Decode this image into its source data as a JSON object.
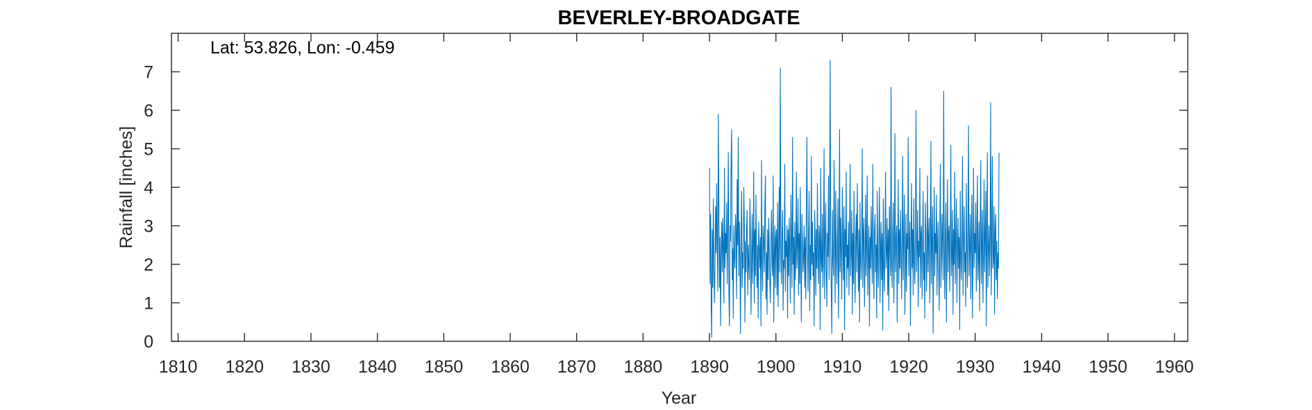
{
  "chart_data": {
    "type": "line",
    "title": "BEVERLEY-BROADGATE",
    "annotation": "Lat: 53.826, Lon: -0.459",
    "xlabel": "Year",
    "ylabel": "Rainfall [inches]",
    "xlim": [
      1809,
      1962
    ],
    "ylim": [
      0,
      8
    ],
    "xticks": [
      1810,
      1820,
      1830,
      1840,
      1850,
      1860,
      1870,
      1880,
      1890,
      1900,
      1910,
      1920,
      1930,
      1940,
      1950,
      1960
    ],
    "yticks": [
      0,
      1,
      2,
      3,
      4,
      5,
      6,
      7
    ],
    "grid": false,
    "series_color": "#0072BD",
    "series": [
      {
        "x_start": 1890.0,
        "x_step": 0.0833333,
        "values": [
          4.5,
          1.5,
          3.3,
          0.9,
          0.1,
          2.9,
          1.4,
          3.7,
          2.0,
          1.0,
          1.9,
          3.5,
          2.3,
          4.1,
          2.6,
          1.3,
          5.9,
          3.6,
          1.4,
          2.7,
          0.4,
          2.2,
          3.1,
          1.8,
          3.2,
          2.4,
          1.0,
          4.5,
          1.9,
          2.8,
          2.3,
          3.6,
          1.5,
          2.9,
          4.9,
          1.2,
          0.4,
          3.0,
          2.6,
          4.7,
          5.5,
          1.6,
          2.4,
          0.6,
          3.0,
          2.2,
          1.9,
          3.3,
          2.9,
          1.1,
          4.2,
          2.5,
          5.3,
          1.7,
          3.1,
          2.1,
          0.2,
          2.8,
          3.9,
          1.4,
          2.3,
          1.9,
          4.0,
          3.0,
          0.5,
          2.6,
          1.8,
          2.9,
          3.4,
          1.2,
          2.5,
          2.0,
          1.6,
          3.7,
          2.8,
          0.7,
          2.1,
          3.3,
          1.5,
          2.6,
          4.4,
          1.0,
          2.9,
          1.7,
          3.8,
          2.2,
          1.4,
          2.5,
          0.6,
          3.1,
          2.4,
          1.9,
          2.7,
          0.4,
          4.7,
          2.1,
          1.3,
          3.0,
          2.6,
          1.8,
          3.5,
          4.3,
          1.1,
          2.3,
          0.7,
          2.9,
          1.6,
          3.2,
          2.4,
          1.5,
          1.0,
          2.6,
          3.4,
          2.0,
          1.7,
          4.3,
          0.5,
          2.2,
          3.0,
          1.4,
          2.7,
          2.9,
          1.2,
          3.6,
          0.9,
          2.5,
          4.0,
          1.8,
          7.1,
          2.3,
          1.5,
          2.8,
          3.4,
          0.8,
          2.1,
          1.9,
          4.6,
          1.3,
          2.6,
          2.2,
          3.0,
          0.6,
          2.9,
          1.7,
          3.2,
          2.4,
          1.0,
          3.8,
          2.6,
          1.4,
          5.3,
          2.0,
          2.7,
          0.7,
          3.1,
          1.6,
          2.3,
          4.4,
          1.9,
          2.5,
          3.7,
          1.2,
          2.8,
          1.5,
          4.0,
          2.1,
          0.5,
          3.3,
          2.6,
          1.8,
          2.2,
          3.0,
          1.4,
          2.7,
          1.1,
          3.6,
          5.3,
          2.4,
          1.3,
          2.8,
          3.9,
          0.8,
          2.5,
          1.6,
          4.8,
          2.0,
          3.1,
          1.7,
          2.3,
          0.4,
          3.4,
          2.6,
          1.2,
          2.9,
          1.9,
          4.1,
          2.2,
          1.5,
          3.0,
          2.7,
          0.3,
          4.5,
          2.1,
          1.8,
          3.3,
          1.4,
          2.4,
          5.0,
          1.1,
          2.6,
          3.6,
          1.9,
          0.9,
          2.8,
          2.2,
          4.3,
          1.6,
          3.0,
          7.3,
          2.5,
          1.3,
          0.2,
          3.4,
          2.1,
          1.7,
          4.7,
          2.8,
          1.0,
          3.9,
          2.3,
          1.5,
          2.6,
          3.7,
          0.6,
          2.0,
          5.5,
          1.8,
          3.2,
          2.4,
          1.1,
          4.0,
          2.7,
          1.6,
          3.5,
          0.3,
          2.9,
          2.2,
          4.4,
          1.4,
          2.5,
          1.9,
          3.1,
          1.2,
          2.6,
          4.6,
          1.7,
          2.3,
          3.4,
          0.7,
          2.8,
          1.5,
          3.9,
          2.1,
          1.0,
          2.7,
          3.3,
          1.8,
          4.1,
          2.4,
          1.3,
          2.9,
          0.5,
          3.6,
          2.2,
          1.6,
          2.5,
          5.0,
          1.4,
          2.8,
          3.2,
          0.9,
          2.0,
          3.8,
          1.7,
          2.6,
          4.3,
          1.2,
          2.3,
          3.0,
          0.4,
          2.7,
          1.9,
          3.5,
          2.4,
          1.5,
          4.6,
          2.1,
          1.1,
          2.9,
          3.3,
          1.8,
          2.5,
          0.6,
          3.9,
          2.2,
          1.4,
          2.7,
          4.0,
          1.0,
          2.4,
          3.1,
          1.6,
          2.8,
          0.3,
          3.7,
          2.0,
          1.3,
          2.6,
          4.4,
          1.9,
          2.3,
          3.2,
          1.2,
          2.9,
          0.8,
          3.5,
          2.5,
          1.7,
          6.6,
          2.1,
          1.4,
          2.8,
          3.6,
          1.0,
          2.4,
          5.4,
          1.8,
          2.6,
          3.0,
          0.5,
          2.3,
          4.2,
          1.5,
          2.9,
          1.9,
          3.4,
          2.2,
          1.1,
          2.7,
          4.8,
          1.6,
          2.5,
          3.8,
          0.7,
          2.0,
          3.3,
          1.3,
          2.8,
          2.4,
          5.3,
          1.7,
          2.6,
          3.1,
          0.4,
          2.3,
          4.1,
          1.9,
          2.9,
          1.2,
          3.7,
          2.1,
          1.5,
          2.7,
          6.0,
          1.8,
          2.4,
          3.4,
          0.9,
          2.6,
          2.2,
          4.5,
          1.4,
          2.8,
          3.0,
          1.1,
          2.5,
          3.9,
          1.6,
          2.3,
          0.6,
          3.6,
          2.9,
          1.3,
          2.1,
          4.3,
          1.8,
          2.7,
          3.2,
          1.0,
          2.4,
          5.2,
          1.5,
          2.6,
          3.5,
          0.2,
          2.2,
          4.0,
          1.7,
          2.8,
          2.3,
          3.8,
          1.2,
          2.5,
          3.1,
          1.9,
          0.8,
          2.9,
          4.6,
          1.4,
          2.1,
          3.3,
          2.6,
          1.6,
          6.5,
          2.4,
          1.1,
          2.7,
          3.6,
          0.5,
          2.3,
          4.2,
          1.8,
          2.8,
          3.0,
          1.3,
          2.5,
          5.1,
          1.7,
          2.2,
          3.4,
          0.7,
          2.9,
          2.0,
          4.4,
          1.5,
          2.6,
          3.7,
          1.0,
          2.4,
          3.2,
          1.9,
          2.7,
          0.3,
          3.9,
          2.2,
          1.6,
          2.8,
          4.8,
          1.2,
          2.5,
          3.5,
          1.8,
          2.3,
          0.9,
          4.1,
          2.6,
          1.4,
          2.9,
          5.6,
          1.7,
          2.4,
          3.3,
          1.1,
          2.7,
          3.8,
          0.6,
          2.1,
          4.5,
          1.9,
          2.8,
          2.3,
          3.6,
          1.3,
          2.6,
          4.3,
          1.6,
          2.2,
          3.1,
          0.8,
          2.9,
          4.7,
          1.5,
          2.5,
          3.4,
          1.0,
          2.3,
          4.2,
          1.8,
          2.7,
          3.9,
          0.4,
          2.6,
          4.9,
          1.4,
          2.4,
          3.0,
          1.7,
          2.8,
          6.2,
          1.2,
          2.5,
          4.8,
          1.9,
          2.1,
          3.5,
          0.7,
          2.9,
          3.3,
          1.6,
          2.6,
          1.1,
          2.3,
          1.9,
          4.9
        ]
      }
    ]
  }
}
